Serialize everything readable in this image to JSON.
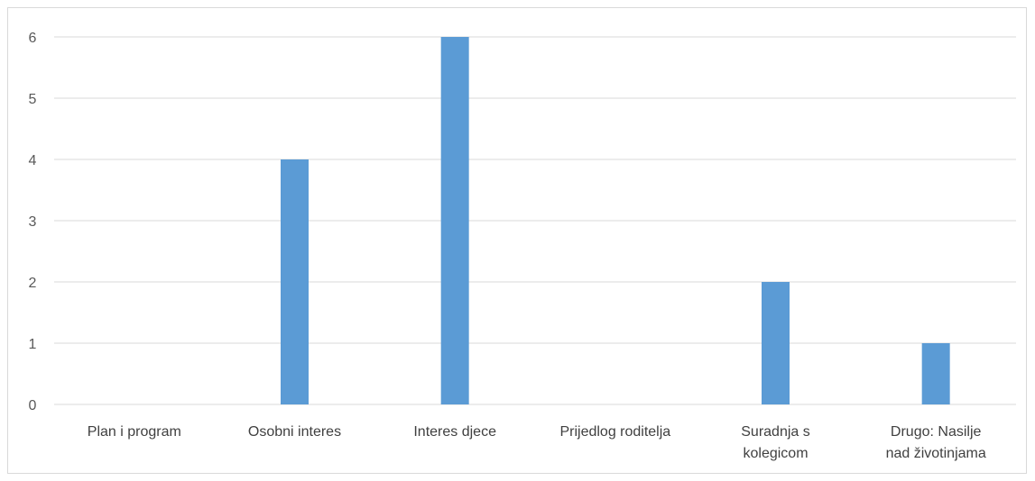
{
  "chart_data": {
    "type": "bar",
    "categories": [
      [
        "Plan i program"
      ],
      [
        "Osobni interes"
      ],
      [
        "Interes djece"
      ],
      [
        "Prijedlog roditelja"
      ],
      [
        "Suradnja s",
        "kolegicom"
      ],
      [
        "Drugo: Nasilje",
        "nad životinjama"
      ]
    ],
    "values": [
      0,
      4,
      6,
      0,
      2,
      1
    ],
    "yticks": [
      "0",
      "1",
      "2",
      "3",
      "4",
      "5",
      "6"
    ],
    "ylim": [
      0,
      6
    ],
    "grid": true,
    "legend": "none",
    "bar_color": "#5b9bd5",
    "grid_color": "#d9d9d9"
  }
}
